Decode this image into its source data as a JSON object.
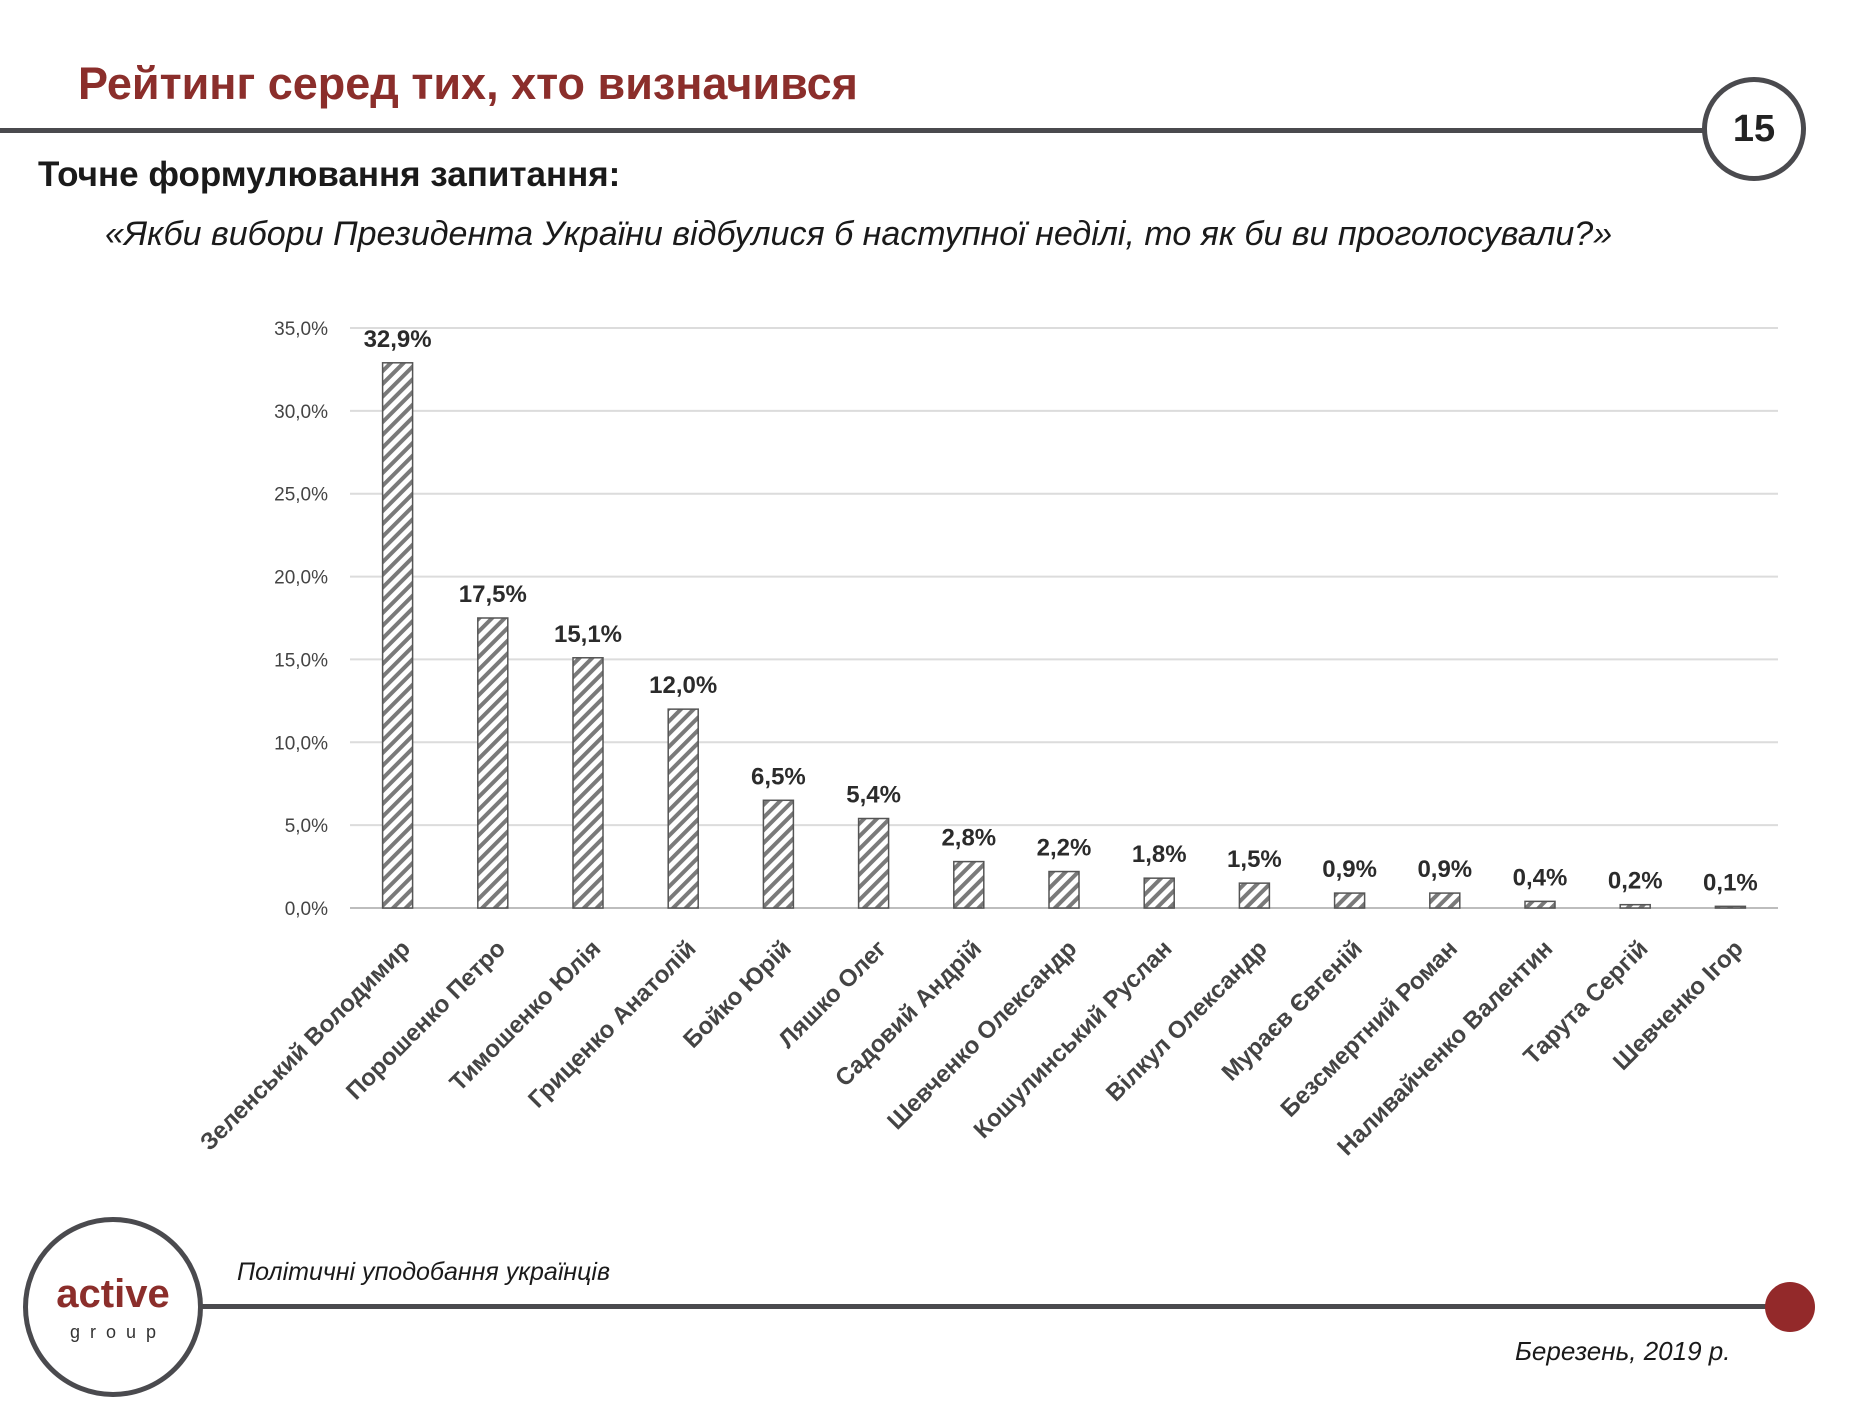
{
  "header": {
    "title": "Рейтинг серед тих, хто визначився",
    "page_number": "15",
    "subtitle": "Точне формулювання запитання:",
    "question": "«Якби вибори Президента України відбулися б наступної неділі, то як би ви проголосували?»"
  },
  "footer": {
    "logo_main": "active",
    "logo_sub": "group",
    "left_text": "Політичні уподобання українців",
    "right_text": "Березень, 2019 р."
  },
  "colors": {
    "accent": "#8b2e2b",
    "dot": "#93292a",
    "rule": "#4a4a4e",
    "bar_hatch": "#7a7a7a"
  },
  "chart_data": {
    "type": "bar",
    "categories": [
      "Зеленський Володимир",
      "Порошенко Петро",
      "Тимошенко Юлія",
      "Гриценко Анатолій",
      "Бойко Юрій",
      "Ляшко Олег",
      "Садовий Андрій",
      "Шевченко Олександр",
      "Кошулинський Руслан",
      "Вілкул Олександр",
      "Мураєв Євгеній",
      "Безсмертний Роман",
      "Наливайченко Валентин",
      "Тарута Сергій",
      "Шевченко Ігор"
    ],
    "values": [
      32.9,
      17.5,
      15.1,
      12.0,
      6.5,
      5.4,
      2.8,
      2.2,
      1.8,
      1.5,
      0.9,
      0.9,
      0.4,
      0.2,
      0.1
    ],
    "value_labels": [
      "32,9%",
      "17,5%",
      "15,1%",
      "12,0%",
      "6,5%",
      "5,4%",
      "2,8%",
      "2,2%",
      "1,8%",
      "1,5%",
      "0,9%",
      "0,9%",
      "0,4%",
      "0,2%",
      "0,1%"
    ],
    "y_ticks": [
      "0,0%",
      "5,0%",
      "10,0%",
      "15,0%",
      "20,0%",
      "25,0%",
      "30,0%",
      "35,0%"
    ],
    "ylim": [
      0,
      35
    ],
    "grid": true,
    "legend": "none",
    "bar_style": "diagonal hatch"
  }
}
